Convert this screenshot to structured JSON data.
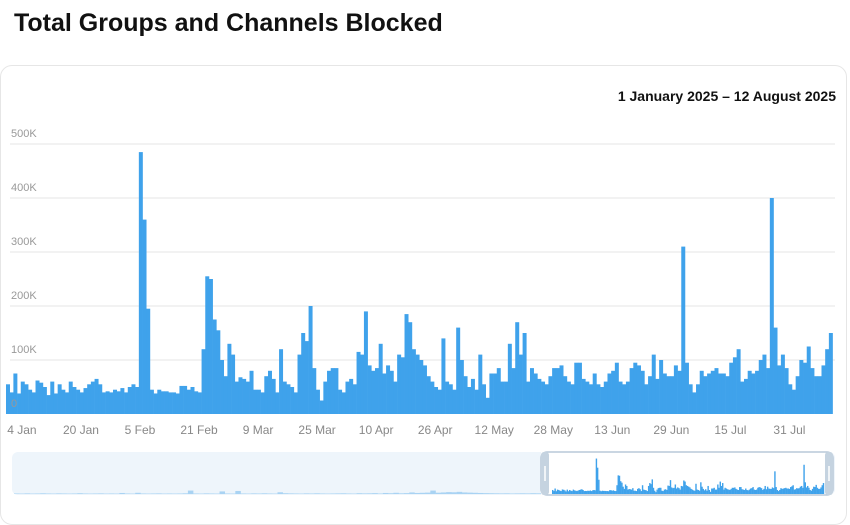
{
  "page": {
    "title": "Total Groups and Channels Blocked",
    "date_range": "1 January 2025 – 12 August 2025"
  },
  "colors": {
    "bar": "#3fa2eb",
    "navigator_faded": "#a9d3f3",
    "navigator_bg": "#eef5fb",
    "grid": "#e6e6e6"
  },
  "chart_data": {
    "type": "bar",
    "title": "Total Groups and Channels Blocked",
    "subtitle": "1 January 2025 – 12 August 2025",
    "start_date": "2025-01-01",
    "unit": "K",
    "ylim": [
      0,
      500
    ],
    "yticks": [
      "0",
      "100K",
      "200K",
      "300K",
      "400K",
      "500K"
    ],
    "xticks": [
      {
        "label": "4 Jan",
        "day": 3
      },
      {
        "label": "20 Jan",
        "day": 19
      },
      {
        "label": "5 Feb",
        "day": 35
      },
      {
        "label": "21 Feb",
        "day": 51
      },
      {
        "label": "9 Mar",
        "day": 67
      },
      {
        "label": "25 Mar",
        "day": 83
      },
      {
        "label": "10 Apr",
        "day": 99
      },
      {
        "label": "26 Apr",
        "day": 115
      },
      {
        "label": "12 May",
        "day": 131
      },
      {
        "label": "28 May",
        "day": 147
      },
      {
        "label": "13 Jun",
        "day": 163
      },
      {
        "label": "29 Jun",
        "day": 179
      },
      {
        "label": "15 Jul",
        "day": 195
      },
      {
        "label": "31 Jul",
        "day": 211
      }
    ],
    "grid": true,
    "values": [
      55,
      40,
      75,
      38,
      60,
      55,
      45,
      40,
      62,
      58,
      50,
      35,
      60,
      38,
      55,
      45,
      40,
      60,
      50,
      45,
      40,
      48,
      55,
      60,
      65,
      55,
      40,
      42,
      40,
      45,
      42,
      48,
      40,
      50,
      55,
      50,
      485,
      360,
      195,
      45,
      38,
      45,
      42,
      42,
      40,
      40,
      38,
      52,
      52,
      45,
      50,
      42,
      40,
      120,
      255,
      250,
      175,
      155,
      100,
      70,
      130,
      110,
      60,
      68,
      65,
      60,
      80,
      45,
      45,
      40,
      70,
      80,
      65,
      40,
      120,
      60,
      55,
      50,
      40,
      110,
      150,
      135,
      200,
      85,
      45,
      25,
      60,
      80,
      85,
      85,
      45,
      40,
      60,
      65,
      55,
      115,
      110,
      190,
      90,
      80,
      85,
      130,
      75,
      90,
      80,
      60,
      110,
      105,
      185,
      170,
      120,
      110,
      100,
      90,
      70,
      60,
      50,
      45,
      140,
      60,
      55,
      45,
      160,
      100,
      70,
      50,
      65,
      45,
      110,
      55,
      30,
      75,
      75,
      85,
      60,
      60,
      130,
      85,
      170,
      110,
      150,
      60,
      85,
      75,
      65,
      60,
      55,
      70,
      85,
      85,
      90,
      70,
      60,
      55,
      95,
      95,
      65,
      60,
      55,
      75,
      55,
      50,
      60,
      75,
      80,
      95,
      60,
      55,
      60,
      85,
      95,
      90,
      80,
      55,
      70,
      110,
      65,
      100,
      75,
      70,
      70,
      90,
      80,
      310,
      95,
      55,
      40,
      55,
      80,
      70,
      75,
      80,
      85,
      75,
      75,
      70,
      95,
      105,
      120,
      60,
      65,
      80,
      75,
      80,
      100,
      110,
      85,
      400,
      160,
      90,
      110,
      85,
      55,
      45,
      70,
      100,
      95,
      125,
      85,
      70,
      70,
      90,
      120,
      150
    ],
    "navigator_history": [
      6,
      5,
      7,
      5,
      6,
      8,
      6,
      5,
      7,
      6,
      5,
      6,
      9,
      6,
      5,
      6,
      7,
      5,
      6,
      5,
      12,
      6,
      5,
      14,
      6,
      5,
      6,
      7,
      5,
      6,
      5,
      6,
      8,
      40,
      6,
      5,
      7,
      6,
      5,
      30,
      6,
      5,
      35,
      6,
      5,
      7,
      6,
      8,
      6,
      5,
      20,
      9,
      7,
      6,
      5,
      7,
      6,
      8,
      6,
      5,
      6,
      7,
      8,
      6,
      5,
      9,
      7,
      8,
      10,
      6,
      12,
      9,
      14,
      8,
      10,
      18,
      12,
      14,
      16,
      40,
      15,
      18,
      22,
      20,
      25,
      18,
      16,
      14,
      12,
      10,
      9,
      8,
      7,
      8,
      6,
      7,
      8,
      7,
      9,
      8
    ]
  }
}
